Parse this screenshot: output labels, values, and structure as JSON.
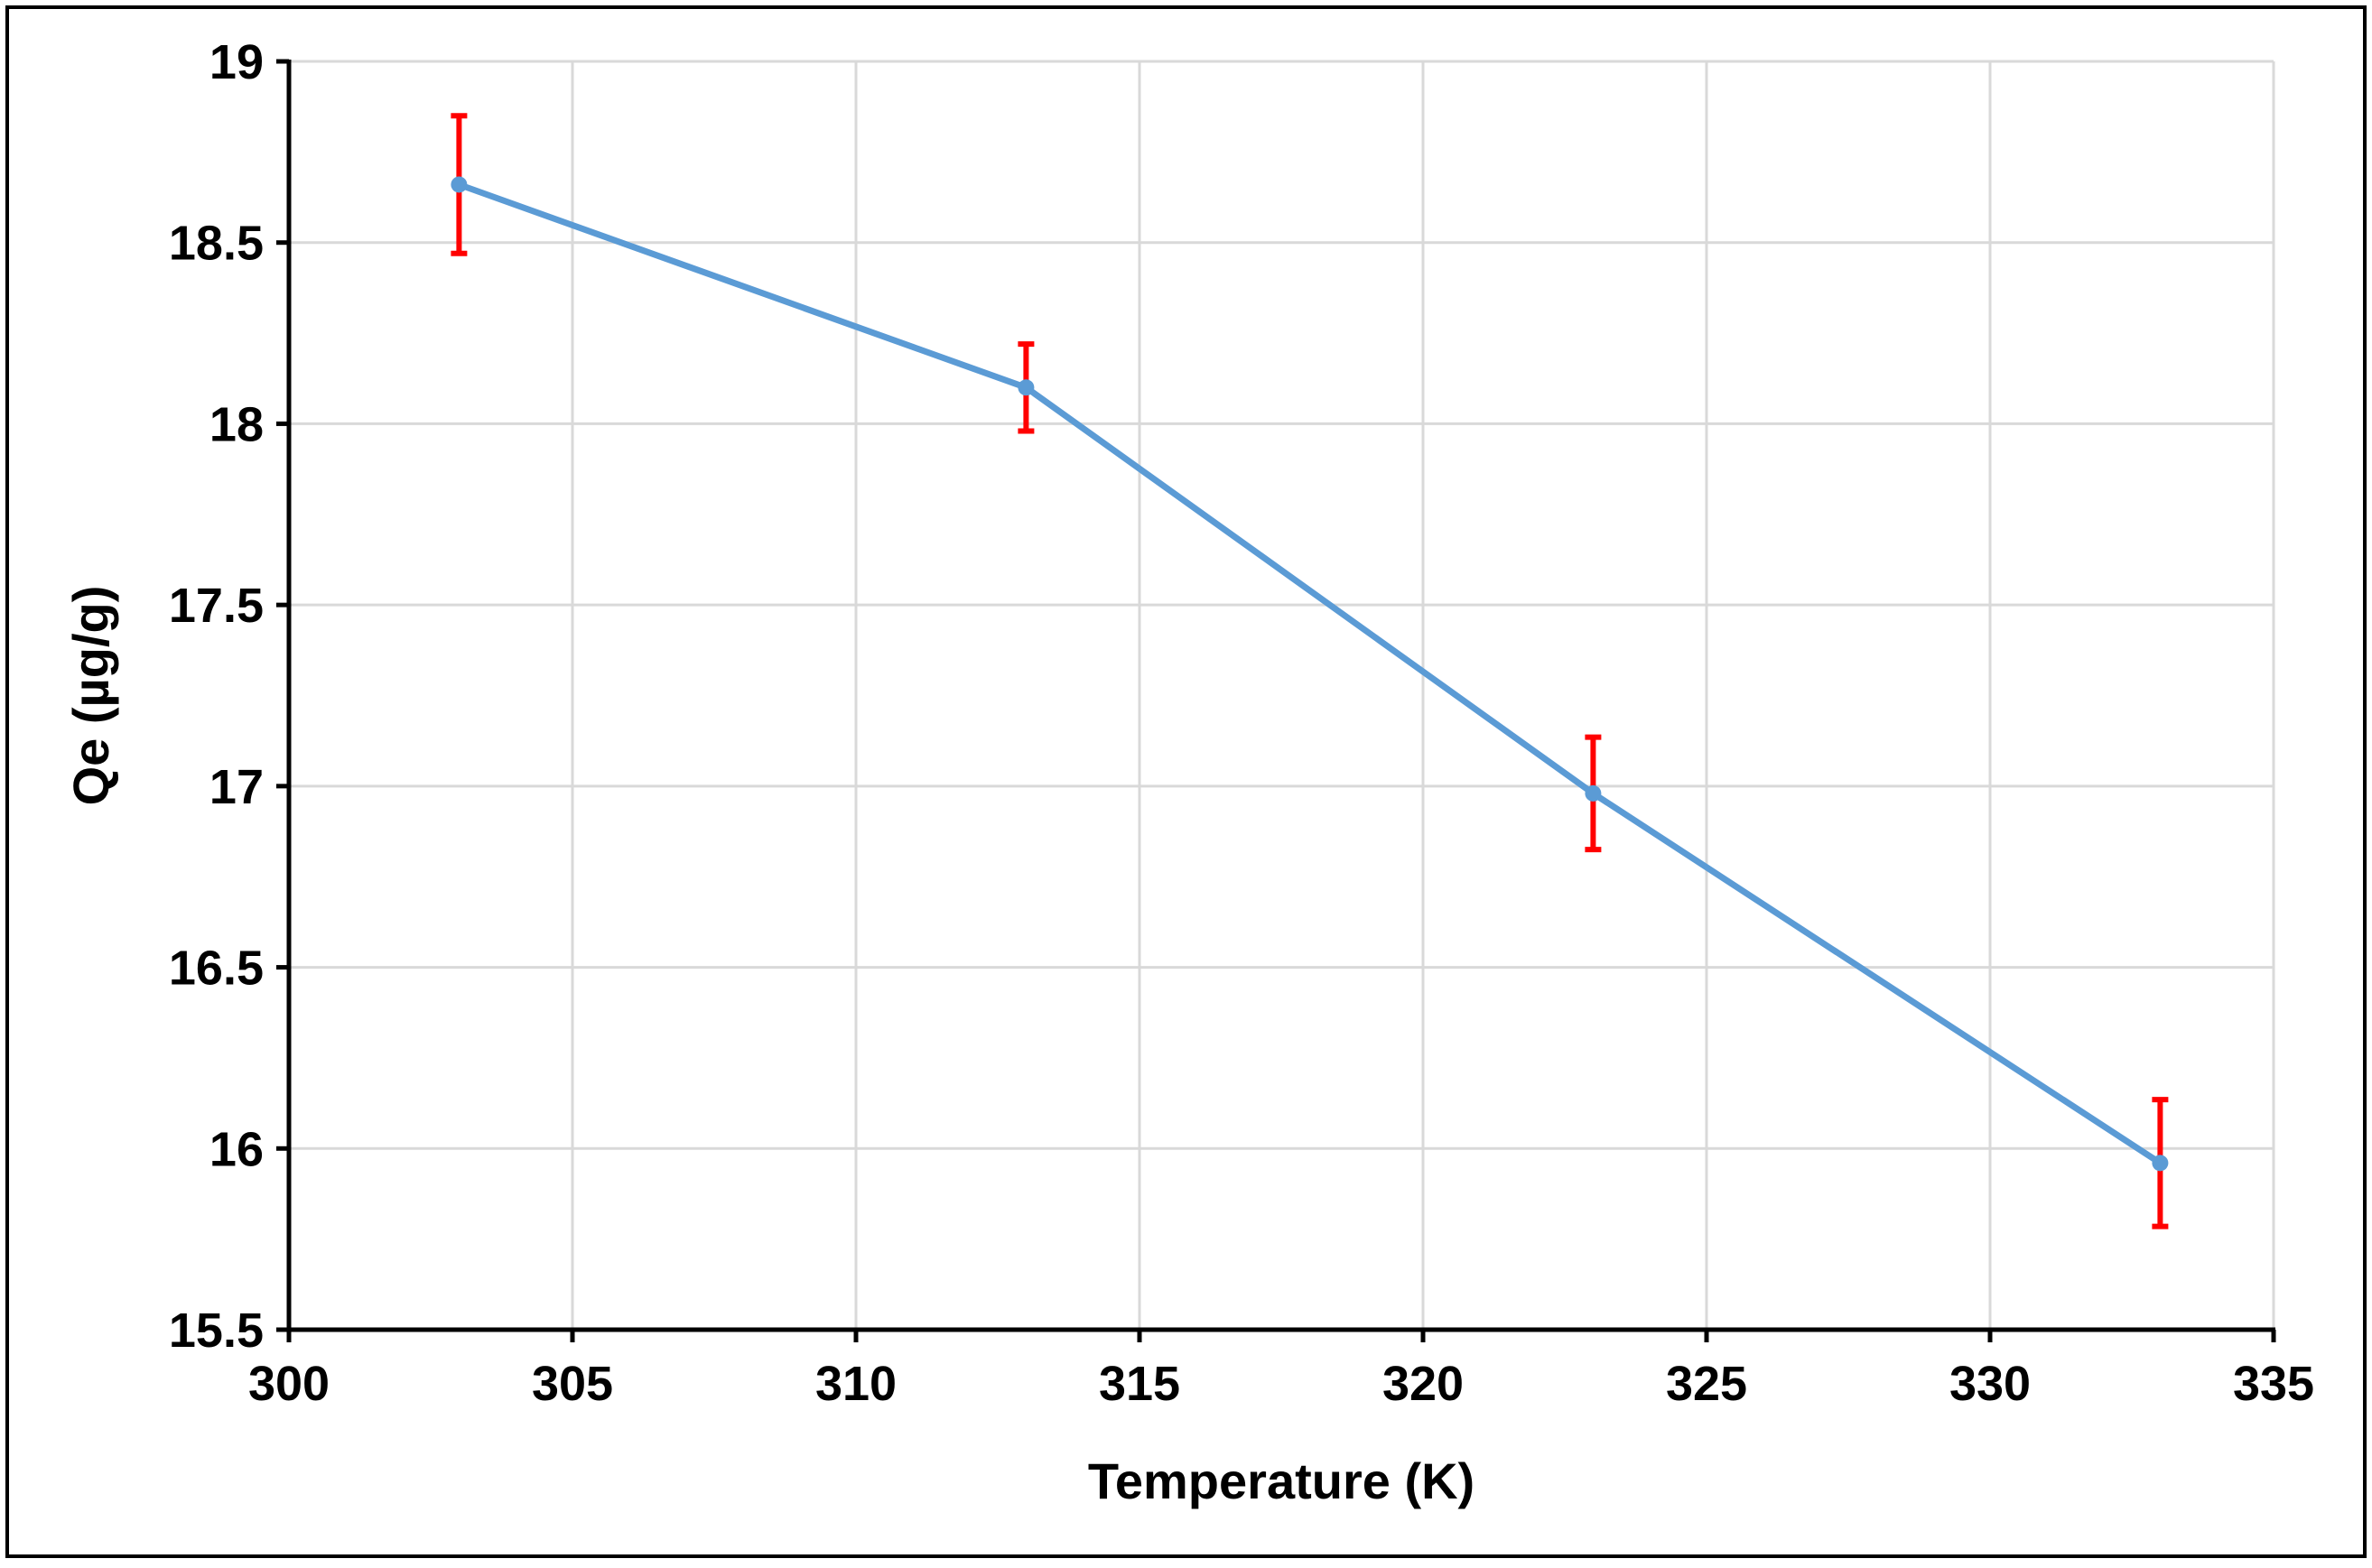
{
  "chart_data": {
    "type": "line",
    "title": "",
    "xlabel": "Temperature (K)",
    "ylabel": "Qe (µg/g)",
    "xlim": [
      300,
      335
    ],
    "ylim": [
      15.5,
      19
    ],
    "x_ticks": [
      300,
      305,
      310,
      315,
      320,
      325,
      330,
      335
    ],
    "y_ticks": [
      15.5,
      16,
      16.5,
      17,
      17.5,
      18,
      18.5,
      19
    ],
    "grid": true,
    "legend": "none",
    "series": [
      {
        "x": [
          303,
          313,
          323,
          333
        ],
        "y": [
          18.66,
          18.1,
          16.98,
          15.96
        ],
        "error": [
          0.19,
          0.12,
          0.155,
          0.175
        ],
        "color": "#5B9BD5",
        "error_color": "#FF0000"
      }
    ],
    "colors": {
      "grid": "#D9D9D9",
      "axis": "#000000",
      "frame": "#000000"
    }
  }
}
